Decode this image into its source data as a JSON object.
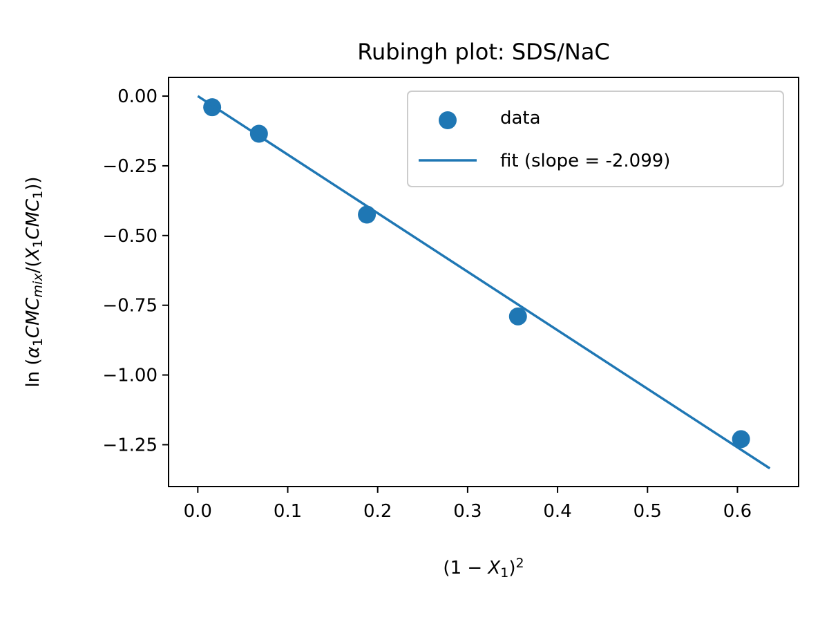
{
  "chart_data": {
    "type": "scatter",
    "title": "Rubingh plot: SDS/NaC",
    "xlabel": {
      "parts": [
        {
          "t": "(1 − ",
          "style": "normal"
        },
        {
          "t": "X",
          "style": "italic"
        },
        {
          "t": "1",
          "style": "sub"
        },
        {
          "t": ")",
          "style": "normal"
        },
        {
          "t": "2",
          "style": "sup"
        }
      ]
    },
    "ylabel": {
      "parts": [
        {
          "t": "ln (",
          "style": "normal"
        },
        {
          "t": "α",
          "style": "italic"
        },
        {
          "t": "1",
          "style": "sub"
        },
        {
          "t": "CMC",
          "style": "italic"
        },
        {
          "t": "mix",
          "style": "isub"
        },
        {
          "t": "/(",
          "style": "normal"
        },
        {
          "t": "X",
          "style": "italic"
        },
        {
          "t": "1",
          "style": "sub"
        },
        {
          "t": "CMC",
          "style": "italic"
        },
        {
          "t": "1",
          "style": "sub"
        },
        {
          "t": "))",
          "style": "normal"
        }
      ]
    },
    "xlim": [
      -0.0325,
      0.668
    ],
    "ylim": [
      -1.4,
      0.067
    ],
    "xticks": [
      0.0,
      0.1,
      0.2,
      0.3,
      0.4,
      0.5,
      0.6
    ],
    "xtick_labels": [
      "0.0",
      "0.1",
      "0.2",
      "0.3",
      "0.4",
      "0.5",
      "0.6"
    ],
    "yticks": [
      0.0,
      -0.25,
      -0.5,
      -0.75,
      -1.0,
      -1.25
    ],
    "ytick_labels": [
      "0.00",
      "−0.25",
      "−0.50",
      "−0.75",
      "−1.00",
      "−1.25"
    ],
    "grid": false,
    "legend_position": "top-right",
    "series": [
      {
        "name": "data",
        "kind": "scatter",
        "color": "#1f77b4",
        "x": [
          0.016,
          0.068,
          0.188,
          0.356,
          0.604
        ],
        "y": [
          -0.04,
          -0.135,
          -0.425,
          -0.79,
          -1.23
        ]
      },
      {
        "name": "fit (slope = -2.099)",
        "kind": "line",
        "color": "#1f77b4",
        "x": [
          0.0,
          0.636
        ],
        "y": [
          0.0,
          -1.335
        ]
      }
    ]
  }
}
